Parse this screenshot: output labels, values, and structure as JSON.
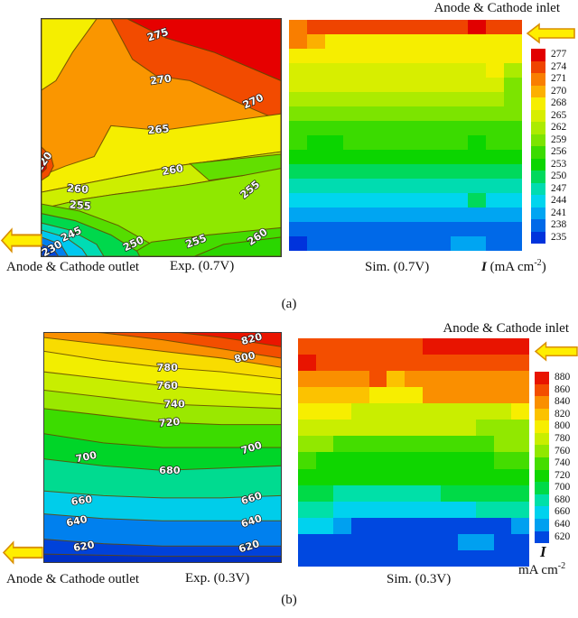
{
  "panels": {
    "a": {
      "caption": "(a)",
      "inlet_label": "Anode & Cathode inlet",
      "outlet_label": "Anode & Cathode outlet",
      "exp_title": "Exp. (0.7V)",
      "sim_title": "Sim. (0.7V)",
      "unit_i": "I",
      "unit_pre": " (mA cm",
      "unit_sup": "-2",
      "unit_post": ")"
    },
    "b": {
      "caption": "(b)",
      "inlet_label": "Anode & Cathode inlet",
      "outlet_label": "Anode & Cathode outlet",
      "exp_title": "Exp. (0.3V)",
      "sim_title": "Sim. (0.3V)",
      "unit_i": "I",
      "unit_line2": "mA cm",
      "unit_sup": "-2"
    }
  },
  "arrow_colors": {
    "fill": "#ffee00",
    "stroke": "#d98e00"
  },
  "chart_data": [
    {
      "id": "exp-a",
      "type": "heatmap",
      "subtype": "contour",
      "title": "Exp. (0.7V)",
      "units": "mA cm-2",
      "value_range": [
        220,
        280
      ],
      "contour_levels": [
        220,
        230,
        245,
        250,
        255,
        260,
        265,
        270,
        275
      ],
      "stroke_regions": true,
      "regions": [
        {
          "c": "#fa9600",
          "p": "0,0 100,0 100,100 0,100"
        },
        {
          "c": "#f5ee00",
          "p": "0,0 23,0 13,14 6,26 0,30"
        },
        {
          "c": "#f24b00",
          "p": "29,0 36,0 52,8 72,14 100,26 100,43 86,37 62,26 48,24 38,17"
        },
        {
          "c": "#e60000",
          "p": "36,0 100,0 100,26 72,14 52,8"
        },
        {
          "c": "#f5ee00",
          "p": "29,45 50,47 100,40 100,56 56,62 30,67 15,70 0,73 0,66 10,62 22,58"
        },
        {
          "c": "#cdee00",
          "p": "0,73 15,70 30,67 56,62 100,56 100,62 84,66 60,70 30,74 17,76 0,80"
        },
        {
          "c": "#8fe800",
          "p": "0,80 17,76 30,74 60,70 84,66 100,62 100,100 0,100"
        },
        {
          "c": "#62df00",
          "p": "62,61 100,57 100,63 84,66 70,68"
        },
        {
          "c": "#55dd00",
          "p": "0,78 16,81 32,87 46,95 50,100 0,100"
        },
        {
          "c": "#44db00",
          "p": "36,100 46,94 70,91 100,88 100,100"
        },
        {
          "c": "#2ad600",
          "p": "64,100 76,95 100,92 100,100"
        },
        {
          "c": "#00d84c",
          "p": "0,82 14,85 29,91 40,98 41,100 0,100"
        },
        {
          "c": "#00dcb4",
          "p": "0,86 12,89 23,95 26,100 0,100"
        },
        {
          "c": "#00c8f0",
          "p": "0,89 10,92 17,97 19,100 0,100"
        },
        {
          "c": "#0080f0",
          "p": "0,92 8,95 11,100 0,100"
        },
        {
          "c": "#0048e0",
          "p": "0,95 5,97 7,100 0,100"
        },
        {
          "c": "#f24b00",
          "p": "0,54 4,58 5,62 3,66 0,68"
        },
        {
          "c": "#e60000",
          "p": "0,57 2,60 2,63 0,65"
        }
      ],
      "contour_labels": [
        {
          "v": "275",
          "x": 49,
          "y": 8,
          "r": -18
        },
        {
          "v": "270",
          "x": 50,
          "y": 27,
          "r": -8
        },
        {
          "v": "270",
          "x": 89,
          "y": 36,
          "r": -25
        },
        {
          "v": "265",
          "x": 49,
          "y": 48,
          "r": -5
        },
        {
          "v": "260",
          "x": 55,
          "y": 65,
          "r": -10
        },
        {
          "v": "255",
          "x": 88,
          "y": 73,
          "r": -40
        },
        {
          "v": "260",
          "x": 15,
          "y": 73,
          "r": 5
        },
        {
          "v": "255",
          "x": 16,
          "y": 80,
          "r": 5
        },
        {
          "v": "245",
          "x": 13,
          "y": 92,
          "r": -25
        },
        {
          "v": "230",
          "x": 5,
          "y": 98,
          "r": -30
        },
        {
          "v": "250",
          "x": 39,
          "y": 96,
          "r": -25
        },
        {
          "v": "255",
          "x": 65,
          "y": 95,
          "r": -20
        },
        {
          "v": "260",
          "x": 91,
          "y": 93,
          "r": -35
        },
        {
          "v": "220",
          "x": 2,
          "y": 61,
          "r": -55
        }
      ]
    },
    {
      "id": "sim-a",
      "type": "heatmap",
      "title": "Sim. (0.7V)",
      "units": "mA cm-2",
      "scale_values": [
        277,
        274,
        271,
        270,
        268,
        265,
        262,
        259,
        256,
        253,
        250,
        247,
        244,
        241,
        238,
        235
      ],
      "scale_colors": [
        "#e10000",
        "#ef4400",
        "#f97e00",
        "#fcb000",
        "#f6ee00",
        "#d7ee00",
        "#aceb00",
        "#7ce400",
        "#3bdb00",
        "#0bd500",
        "#00d95c",
        "#00dcb0",
        "#00d5ee",
        "#00a5f2",
        "#0069e8",
        "#0033dc"
      ],
      "grid": [
        [
          271,
          274,
          274,
          274,
          274,
          274,
          274,
          274,
          274,
          274,
          277,
          274,
          274
        ],
        [
          271,
          270,
          268,
          268,
          268,
          268,
          268,
          268,
          268,
          268,
          268,
          268,
          268
        ],
        [
          268,
          268,
          268,
          268,
          268,
          268,
          268,
          268,
          268,
          268,
          268,
          268,
          268
        ],
        [
          265,
          265,
          265,
          265,
          265,
          265,
          265,
          265,
          265,
          265,
          265,
          268,
          262
        ],
        [
          265,
          265,
          265,
          265,
          265,
          265,
          265,
          265,
          265,
          265,
          265,
          265,
          259
        ],
        [
          262,
          262,
          262,
          262,
          262,
          262,
          262,
          262,
          262,
          262,
          262,
          262,
          259
        ],
        [
          259,
          259,
          259,
          259,
          259,
          259,
          259,
          259,
          259,
          259,
          259,
          259,
          259
        ],
        [
          256,
          256,
          256,
          256,
          256,
          256,
          256,
          256,
          256,
          256,
          256,
          256,
          256
        ],
        [
          256,
          253,
          253,
          256,
          256,
          256,
          256,
          256,
          256,
          256,
          253,
          256,
          256
        ],
        [
          253,
          253,
          253,
          253,
          253,
          253,
          253,
          253,
          253,
          253,
          253,
          253,
          253
        ],
        [
          250,
          250,
          250,
          250,
          250,
          250,
          250,
          250,
          250,
          250,
          250,
          250,
          250
        ],
        [
          247,
          247,
          247,
          247,
          247,
          247,
          247,
          247,
          247,
          247,
          247,
          247,
          247
        ],
        [
          244,
          244,
          244,
          244,
          244,
          244,
          244,
          244,
          244,
          244,
          250,
          244,
          244
        ],
        [
          241,
          241,
          241,
          241,
          241,
          241,
          241,
          241,
          241,
          241,
          241,
          241,
          241
        ],
        [
          238,
          238,
          238,
          238,
          238,
          238,
          238,
          238,
          238,
          238,
          238,
          238,
          238
        ],
        [
          235,
          238,
          238,
          238,
          238,
          238,
          238,
          238,
          238,
          241,
          241,
          238,
          238
        ]
      ]
    },
    {
      "id": "exp-b",
      "type": "heatmap",
      "subtype": "contour",
      "title": "Exp. (0.3V)",
      "units": "mA cm-2",
      "value_range": [
        610,
        880
      ],
      "contour_levels": [
        620,
        640,
        660,
        680,
        700,
        720,
        740,
        760,
        780,
        800,
        820
      ],
      "stroke_regions": false,
      "regions": [
        {
          "c": "#ea1500",
          "p": "0,0 100,0 100,100 0,100"
        },
        {
          "c": "#f34e00",
          "p": "0,-5 25,-3 50,-1 75,2 100,6 100,100 0,100"
        },
        {
          "c": "#fa9000",
          "p": "0,-2 25,0 50,3 75,7 100,11 100,100 0,100"
        },
        {
          "c": "#f8dc00",
          "p": "0,2 25,5 50,8 75,11 100,15 100,100 0,100"
        },
        {
          "c": "#f2ee00",
          "p": "0,8 25,12 50,15 75,17 100,20 100,100 0,100"
        },
        {
          "c": "#c8ee00",
          "p": "0,17 25,20 50,23 75,25 100,27 100,100 0,100"
        },
        {
          "c": "#9ae800",
          "p": "0,25 25,28 50,31 75,32 100,33 100,100 0,100"
        },
        {
          "c": "#3cdc00",
          "p": "0,33 25,36 50,39 75,40 100,40 100,100 0,100"
        },
        {
          "c": "#00d528",
          "p": "0,44 25,48 50,50 75,50 100,50 100,100 0,100"
        },
        {
          "c": "#00db90",
          "p": "0,55 25,58 50,60 75,59 100,58 100,100 0,100"
        },
        {
          "c": "#00cdea",
          "p": "0,69 25,71 50,72 75,72 100,71 100,100 0,100"
        },
        {
          "c": "#0080ee",
          "p": "0,79 25,81 50,82 75,82 100,82 100,100 0,100"
        },
        {
          "c": "#0042da",
          "p": "0,90 25,92 50,93 75,93 100,93 100,100 0,100"
        },
        {
          "c": "#002fc4",
          "p": "0,96.5 25,97 50,97.5 75,97.5 100,97.5 100,100 0,100"
        }
      ],
      "lines": [
        "0,-5 25,-3 50,-1 75,2 100,6",
        "0,-2 25,0 50,3 75,7 100,11",
        "0,2 25,5 50,8 75,11 100,15",
        "0,8 25,12 50,15 75,17 100,20",
        "0,17 25,20 50,23 75,25 100,27",
        "0,25 25,28 50,31 75,32 100,33",
        "0,33 25,36 50,39 75,40 100,40",
        "0,44 25,48 50,50 75,50 100,50",
        "0,55 25,58 50,60 75,59 100,58",
        "0,69 25,71 50,72 75,72 100,71",
        "0,79 25,81 50,82 75,82 100,82",
        "0,90 25,92 50,93 75,93 100,93",
        "0,96.5 25,97 50,97.5 75,97.5 100,97.5"
      ],
      "contour_labels": [
        {
          "v": "820",
          "x": 88,
          "y": 4,
          "r": -15
        },
        {
          "v": "800",
          "x": 85,
          "y": 12,
          "r": -12
        },
        {
          "v": "780",
          "x": 52,
          "y": 16.5,
          "r": 0
        },
        {
          "v": "760",
          "x": 52,
          "y": 24.5,
          "r": 0
        },
        {
          "v": "740",
          "x": 55,
          "y": 32.5,
          "r": 0
        },
        {
          "v": "720",
          "x": 53,
          "y": 40.5,
          "r": -5
        },
        {
          "v": "700",
          "x": 88,
          "y": 51.5,
          "r": -18
        },
        {
          "v": "700",
          "x": 18,
          "y": 55.5,
          "r": -12
        },
        {
          "v": "680",
          "x": 53,
          "y": 61.5,
          "r": 0
        },
        {
          "v": "660",
          "x": 16,
          "y": 74.5,
          "r": -8
        },
        {
          "v": "660",
          "x": 88,
          "y": 73.5,
          "r": -18
        },
        {
          "v": "640",
          "x": 14,
          "y": 83.5,
          "r": -12
        },
        {
          "v": "640",
          "x": 88,
          "y": 83.5,
          "r": -18
        },
        {
          "v": "620",
          "x": 17,
          "y": 94.5,
          "r": -10
        },
        {
          "v": "620",
          "x": 87,
          "y": 94.5,
          "r": -18
        }
      ]
    },
    {
      "id": "sim-b",
      "type": "heatmap",
      "title": "Sim. (0.3V)",
      "units": "mA cm-2",
      "scale_values": [
        880,
        860,
        840,
        820,
        800,
        780,
        760,
        740,
        720,
        700,
        680,
        660,
        640,
        620
      ],
      "scale_colors": [
        "#e81400",
        "#f34e00",
        "#fa8f00",
        "#fcc200",
        "#f7ee00",
        "#c9ee00",
        "#91e800",
        "#44dd00",
        "#0fd600",
        "#00da47",
        "#00e0a8",
        "#00d2ee",
        "#00a0f0",
        "#0048e0"
      ],
      "grid": [
        [
          860,
          860,
          860,
          860,
          860,
          860,
          860,
          880,
          880,
          880,
          880,
          880,
          880
        ],
        [
          880,
          860,
          860,
          860,
          860,
          860,
          860,
          860,
          860,
          860,
          860,
          860,
          860
        ],
        [
          840,
          840,
          840,
          840,
          860,
          820,
          840,
          840,
          840,
          840,
          840,
          840,
          840
        ],
        [
          820,
          820,
          820,
          820,
          800,
          800,
          800,
          840,
          840,
          840,
          840,
          840,
          840
        ],
        [
          800,
          800,
          800,
          780,
          780,
          780,
          780,
          780,
          780,
          780,
          780,
          780,
          800
        ],
        [
          780,
          780,
          780,
          780,
          780,
          780,
          780,
          780,
          780,
          780,
          760,
          760,
          760
        ],
        [
          760,
          760,
          740,
          740,
          740,
          740,
          740,
          740,
          740,
          740,
          740,
          760,
          760
        ],
        [
          740,
          720,
          720,
          720,
          720,
          720,
          720,
          720,
          720,
          720,
          720,
          740,
          740
        ],
        [
          720,
          720,
          720,
          720,
          720,
          720,
          720,
          720,
          720,
          720,
          720,
          720,
          720
        ],
        [
          700,
          700,
          680,
          680,
          680,
          680,
          680,
          680,
          700,
          700,
          700,
          700,
          700
        ],
        [
          680,
          680,
          660,
          660,
          660,
          660,
          660,
          660,
          660,
          660,
          680,
          680,
          680
        ],
        [
          660,
          660,
          640,
          620,
          620,
          620,
          620,
          620,
          620,
          620,
          620,
          620,
          640
        ],
        [
          620,
          620,
          620,
          620,
          620,
          620,
          620,
          620,
          620,
          640,
          640,
          620,
          620
        ],
        [
          620,
          620,
          620,
          620,
          620,
          620,
          620,
          620,
          620,
          620,
          620,
          620,
          620
        ]
      ]
    }
  ]
}
